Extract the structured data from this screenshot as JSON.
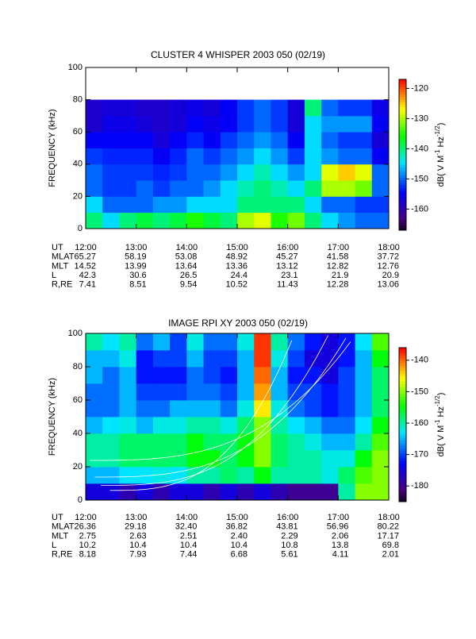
{
  "chart_data": [
    {
      "type": "heatmap",
      "title": "CLUSTER 4 WHISPER 2003 050 (02/19)",
      "ylabel": "FREQUENCY (kHz)",
      "colorbar_label": [
        "dB( V M",
        "-1",
        " Hz",
        "-1/2",
        ")"
      ],
      "xlim": [
        12,
        18
      ],
      "xticks": [
        {
          "value": 12,
          "label": "12:00"
        },
        {
          "value": 13,
          "label": "13:00"
        },
        {
          "value": 14,
          "label": "14:00"
        },
        {
          "value": 15,
          "label": "15:00"
        },
        {
          "value": 16,
          "label": "16:00"
        },
        {
          "value": 17,
          "label": "17:00"
        },
        {
          "value": 18,
          "label": "18:00"
        }
      ],
      "ylim": [
        0,
        100
      ],
      "yticks": [
        0,
        20,
        40,
        60,
        80,
        100
      ],
      "zlim": [
        -167,
        -117
      ],
      "zticks": [
        -120,
        -130,
        -140,
        -150,
        -160
      ],
      "x_bins": [
        12,
        12.3333,
        12.6667,
        13,
        13.3333,
        13.6667,
        14,
        14.3333,
        14.6667,
        15,
        15.3333,
        15.6667,
        16,
        16.3333,
        16.6667,
        17,
        17.3333,
        17.6667,
        18
      ],
      "y_bins": [
        0,
        10,
        20,
        30,
        40,
        50,
        60,
        70,
        80
      ],
      "values": [
        [
          -140,
          -145,
          -140,
          -138,
          -140,
          -138,
          -135,
          -138,
          -140,
          -130,
          -128,
          -135,
          -132,
          -140,
          -145,
          -148,
          -150,
          -150
        ],
        [
          -145,
          -150,
          -150,
          -150,
          -148,
          -148,
          -145,
          -145,
          -145,
          -140,
          -140,
          -140,
          -140,
          -145,
          -150,
          -150,
          -152,
          -152
        ],
        [
          -150,
          -152,
          -152,
          -150,
          -152,
          -150,
          -150,
          -148,
          -145,
          -142,
          -140,
          -142,
          -145,
          -140,
          -130,
          -130,
          -132,
          -150
        ],
        [
          -150,
          -152,
          -152,
          -152,
          -153,
          -152,
          -150,
          -150,
          -148,
          -145,
          -142,
          -145,
          -148,
          -145,
          -128,
          -125,
          -128,
          -150
        ],
        [
          -152,
          -153,
          -153,
          -153,
          -155,
          -153,
          -150,
          -152,
          -150,
          -148,
          -145,
          -148,
          -152,
          -145,
          -148,
          -150,
          -150,
          -155
        ],
        [
          -155,
          -155,
          -155,
          -155,
          -157,
          -155,
          -153,
          -155,
          -152,
          -150,
          -148,
          -150,
          -155,
          -145,
          -150,
          -152,
          -152,
          -157
        ],
        [
          -158,
          -156,
          -156,
          -157,
          -158,
          -157,
          -155,
          -156,
          -155,
          -152,
          -150,
          -152,
          -157,
          -145,
          -148,
          -148,
          -148,
          -155
        ],
        [
          -158,
          -157,
          -157,
          -158,
          -158,
          -157,
          -156,
          -157,
          -155,
          -152,
          -150,
          -152,
          -157,
          -140,
          -150,
          -152,
          -152,
          -156
        ]
      ],
      "ephemeris": {
        "ut_label": "UT",
        "rows": [
          {
            "label": "MLAT",
            "values": [
              "65.27",
              "58.19",
              "53.08",
              "48.92",
              "45.27",
              "41.58",
              "37.72"
            ]
          },
          {
            "label": "MLT",
            "values": [
              "14.52",
              "13.99",
              "13.64",
              "13.36",
              "13.12",
              "12.82",
              "12.76"
            ]
          },
          {
            "label": "L",
            "values": [
              "42.3",
              "30.6",
              "26.5",
              "24.4",
              "23.1",
              "21.9",
              "20.9"
            ]
          },
          {
            "label": "R,RE",
            "values": [
              "7.41",
              "8.51",
              "9.54",
              "10.52",
              "11.43",
              "12.28",
              "13.06"
            ]
          }
        ]
      }
    },
    {
      "type": "heatmap",
      "title": "IMAGE RPI XY 2003 050 (02/19)",
      "ylabel": "FREQUENCY (kHz)",
      "colorbar_label": [
        "dB( V M",
        "-1",
        " Hz",
        "-1/2",
        ")"
      ],
      "xlim": [
        12,
        18
      ],
      "xticks": [
        {
          "value": 12,
          "label": "12:00"
        },
        {
          "value": 13,
          "label": "13:00"
        },
        {
          "value": 14,
          "label": "14:00"
        },
        {
          "value": 15,
          "label": "15:00"
        },
        {
          "value": 16,
          "label": "16:00"
        },
        {
          "value": 17,
          "label": "17:00"
        },
        {
          "value": 18,
          "label": "18:00"
        }
      ],
      "ylim": [
        0,
        100
      ],
      "yticks": [
        0,
        20,
        40,
        60,
        80,
        100
      ],
      "zlim": [
        -185,
        -136
      ],
      "zticks": [
        -140,
        -150,
        -160,
        -170,
        -180
      ],
      "x_bins": [
        12,
        12.3333,
        12.6667,
        13,
        13.3333,
        13.6667,
        14,
        14.3333,
        14.6667,
        15,
        15.3333,
        15.6667,
        16,
        16.3333,
        16.6667,
        17,
        17.3333,
        17.6667,
        18
      ],
      "y_bins": [
        0,
        10,
        20,
        30,
        40,
        50,
        60,
        70,
        80,
        90,
        100
      ],
      "values": [
        [
          -175,
          -175,
          -178,
          -175,
          -178,
          -175,
          -175,
          -178,
          -175,
          -178,
          -175,
          -178,
          -180,
          -180,
          -180,
          -160,
          -150,
          -150
        ],
        [
          -165,
          -165,
          -163,
          -163,
          -162,
          -163,
          -160,
          -160,
          -158,
          -160,
          -155,
          -160,
          -160,
          -160,
          -162,
          -158,
          -152,
          -150
        ],
        [
          -160,
          -160,
          -158,
          -158,
          -158,
          -158,
          -155,
          -155,
          -158,
          -155,
          -150,
          -158,
          -160,
          -160,
          -162,
          -162,
          -155,
          -150
        ],
        [
          -160,
          -160,
          -158,
          -158,
          -158,
          -158,
          -155,
          -158,
          -158,
          -155,
          -150,
          -158,
          -160,
          -162,
          -165,
          -165,
          -160,
          -152
        ],
        [
          -165,
          -163,
          -162,
          -165,
          -162,
          -162,
          -160,
          -160,
          -162,
          -158,
          -150,
          -160,
          -163,
          -165,
          -168,
          -168,
          -163,
          -155
        ],
        [
          -168,
          -168,
          -165,
          -168,
          -168,
          -165,
          -165,
          -165,
          -168,
          -162,
          -145,
          -162,
          -168,
          -170,
          -172,
          -170,
          -165,
          -158
        ],
        [
          -168,
          -168,
          -165,
          -170,
          -170,
          -170,
          -168,
          -168,
          -170,
          -165,
          -142,
          -165,
          -170,
          -170,
          -172,
          -170,
          -165,
          -158
        ],
        [
          -165,
          -168,
          -165,
          -172,
          -172,
          -172,
          -168,
          -170,
          -172,
          -165,
          -140,
          -165,
          -172,
          -172,
          -175,
          -170,
          -165,
          -158
        ],
        [
          -165,
          -165,
          -162,
          -172,
          -170,
          -170,
          -165,
          -170,
          -170,
          -165,
          -138,
          -162,
          -170,
          -175,
          -175,
          -172,
          -165,
          -155
        ],
        [
          -160,
          -163,
          -160,
          -168,
          -165,
          -170,
          -162,
          -168,
          -168,
          -162,
          -138,
          -160,
          -168,
          -172,
          -175,
          -172,
          -163,
          -152
        ]
      ],
      "ephemeris": {
        "ut_label": "UT",
        "rows": [
          {
            "label": "MLAT",
            "values": [
              "26.36",
              "29.18",
              "32.40",
              "36.82",
              "43.81",
              "56.96",
              "80.22"
            ]
          },
          {
            "label": "MLT",
            "values": [
              "2.75",
              "2.63",
              "2.51",
              "2.40",
              "2.29",
              "2.06",
              "17.17"
            ]
          },
          {
            "label": "L",
            "values": [
              "10.2",
              "10.4",
              "10.4",
              "10.4",
              "10.8",
              "13.8",
              "69.8"
            ]
          },
          {
            "label": "R,RE",
            "values": [
              "8.18",
              "7.93",
              "7.44",
              "6.68",
              "5.61",
              "4.11",
              "2.01"
            ]
          }
        ]
      }
    }
  ]
}
